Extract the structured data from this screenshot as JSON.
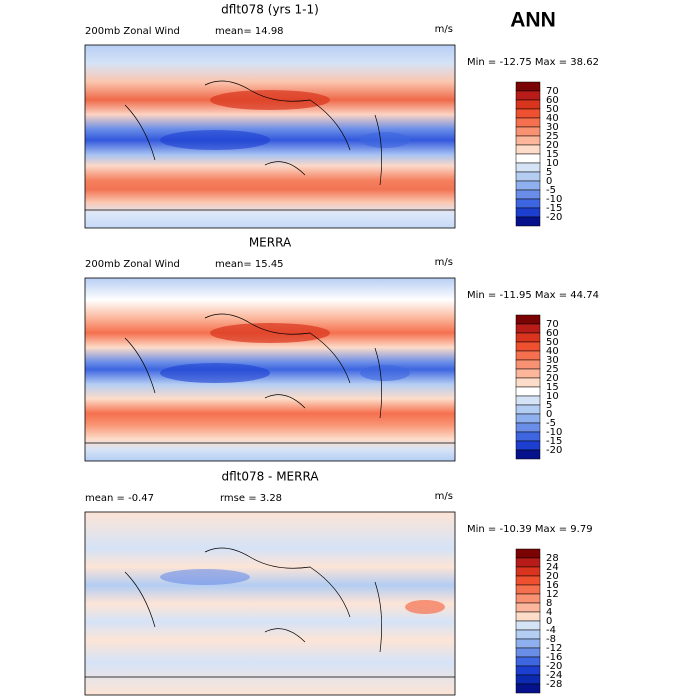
{
  "season": "ANN",
  "panels": [
    {
      "title": "dflt078 (yrs 1-1)",
      "left": "200mb Zonal Wind",
      "middle": "mean=  14.98",
      "units": "m/s",
      "minmax": "Min = -12.75 Max =  38.62",
      "levels": [
        70,
        60,
        50,
        40,
        30,
        25,
        20,
        15,
        10,
        5,
        0,
        -5,
        -10,
        -15,
        -20
      ],
      "colors": [
        "#7a0403",
        "#b81c18",
        "#d9341d",
        "#ef5030",
        "#f5704e",
        "#f89272",
        "#fbb69b",
        "#fddcc9",
        "#ffffff",
        "#d5e3f7",
        "#b3cdf3",
        "#8fb0ee",
        "#6a8ee8",
        "#3e66e0",
        "#1c3fd0",
        "#05128c"
      ]
    },
    {
      "title": "MERRA",
      "left": "200mb Zonal Wind",
      "middle": "mean=  15.45",
      "units": "m/s",
      "minmax": "Min = -11.95 Max =  44.74",
      "levels": [
        70,
        60,
        50,
        40,
        30,
        25,
        20,
        15,
        10,
        5,
        0,
        -5,
        -10,
        -15,
        -20
      ],
      "colors": [
        "#7a0403",
        "#b81c18",
        "#d9341d",
        "#ef5030",
        "#f5704e",
        "#f89272",
        "#fbb69b",
        "#fddcc9",
        "#ffffff",
        "#d5e3f7",
        "#b3cdf3",
        "#8fb0ee",
        "#6a8ee8",
        "#3e66e0",
        "#1c3fd0",
        "#05128c"
      ]
    },
    {
      "title": "dflt078 - MERRA",
      "left": "mean =  -0.47",
      "middle": "rmse =   3.28",
      "units": "m/s",
      "minmax": "Min = -10.39 Max =    9.79",
      "levels": [
        28,
        24,
        20,
        16,
        12,
        8,
        4,
        0,
        -4,
        -8,
        -12,
        -16,
        -20,
        -24,
        -28
      ],
      "colors": [
        "#7a0403",
        "#b81c18",
        "#d9341d",
        "#ef5030",
        "#f5704e",
        "#f89272",
        "#fbb69b",
        "#fddcc9",
        "#d5e3f7",
        "#b3cdf3",
        "#8fb0ee",
        "#6a8ee8",
        "#3e66e0",
        "#1c3fd0",
        "#0b2ab0",
        "#05128c"
      ]
    }
  ]
}
